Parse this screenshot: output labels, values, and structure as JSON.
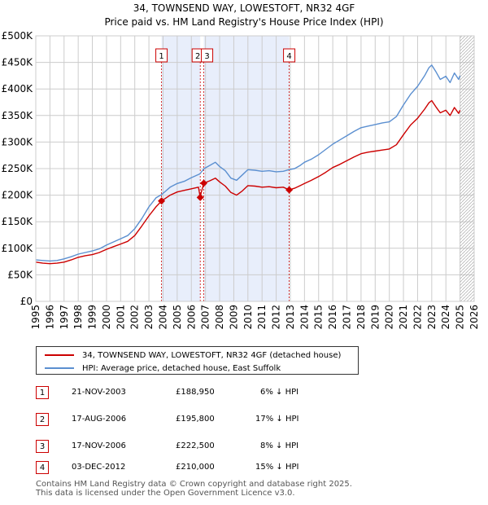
{
  "title_line1": "34, TOWNSEND WAY, LOWESTOFT, NR32 4GF",
  "title_line2": "Price paid vs. HM Land Registry's House Price Index (HPI)",
  "colors": {
    "property": "#cc0000",
    "hpi": "#5b8fd0",
    "shade": "#e8eefb",
    "grid": "#cccccc",
    "marker_line": "#cc0000"
  },
  "chart_data": {
    "type": "line",
    "title": "Price paid vs. HM Land Registry's House Price Index (HPI)",
    "xlabel": "",
    "ylabel": "",
    "xlim": [
      1995,
      2026
    ],
    "ylim": [
      0,
      500000
    ],
    "y_ticks": [
      {
        "value": 0,
        "label": "£0"
      },
      {
        "value": 50000,
        "label": "£50K"
      },
      {
        "value": 100000,
        "label": "£100K"
      },
      {
        "value": 150000,
        "label": "£150K"
      },
      {
        "value": 200000,
        "label": "£200K"
      },
      {
        "value": 250000,
        "label": "£250K"
      },
      {
        "value": 300000,
        "label": "£300K"
      },
      {
        "value": 350000,
        "label": "£350K"
      },
      {
        "value": 400000,
        "label": "£400K"
      },
      {
        "value": 450000,
        "label": "£450K"
      },
      {
        "value": 500000,
        "label": "£500K"
      }
    ],
    "x_ticks": [
      "1995",
      "1996",
      "1997",
      "1998",
      "1999",
      "2000",
      "2001",
      "2002",
      "2003",
      "2004",
      "2005",
      "2006",
      "2007",
      "2008",
      "2009",
      "2010",
      "2011",
      "2012",
      "2013",
      "2014",
      "2015",
      "2016",
      "2017",
      "2018",
      "2019",
      "2020",
      "2021",
      "2022",
      "2023",
      "2024",
      "2025",
      "2026"
    ],
    "shaded_ranges": [
      [
        2003.89,
        2006.63
      ],
      [
        2006.88,
        2012.92
      ]
    ],
    "future_hatch_from": 2025.0,
    "series": [
      {
        "name": "HPI: Average price, detached house, East Suffolk",
        "color": "#5b8fd0",
        "x": [
          1995.0,
          1995.5,
          1996.0,
          1996.5,
          1997.0,
          1997.5,
          1998.0,
          1998.5,
          1999.0,
          1999.5,
          2000.0,
          2000.5,
          2001.0,
          2001.5,
          2002.0,
          2002.5,
          2003.0,
          2003.5,
          2003.9,
          2004.5,
          2005.0,
          2005.5,
          2006.0,
          2006.6,
          2006.9,
          2007.3,
          2007.7,
          2008.0,
          2008.4,
          2008.8,
          2009.2,
          2009.6,
          2010.0,
          2010.5,
          2011.0,
          2011.5,
          2012.0,
          2012.5,
          2012.9,
          2013.3,
          2013.7,
          2014.0,
          2014.5,
          2015.0,
          2015.5,
          2016.0,
          2016.5,
          2017.0,
          2017.5,
          2018.0,
          2018.5,
          2019.0,
          2019.5,
          2020.0,
          2020.5,
          2021.0,
          2021.5,
          2022.0,
          2022.5,
          2022.8,
          2023.0,
          2023.3,
          2023.6,
          2024.0,
          2024.3,
          2024.6,
          2024.9,
          2025.0
        ],
        "values": [
          78000,
          77000,
          76000,
          77000,
          80000,
          84000,
          89000,
          92000,
          95000,
          99000,
          106000,
          112000,
          118000,
          124000,
          137000,
          156000,
          178000,
          195000,
          201000,
          215000,
          222000,
          226000,
          233000,
          240000,
          250000,
          256000,
          262000,
          254000,
          246000,
          232000,
          228000,
          238000,
          248000,
          247000,
          245000,
          246000,
          244000,
          245000,
          248000,
          250000,
          256000,
          262000,
          268000,
          276000,
          286000,
          296000,
          304000,
          312000,
          320000,
          327000,
          330000,
          333000,
          336000,
          338000,
          348000,
          370000,
          390000,
          405000,
          425000,
          440000,
          445000,
          432000,
          418000,
          424000,
          412000,
          430000,
          418000,
          425000
        ]
      },
      {
        "name": "34, TOWNSEND WAY, LOWESTOFT, NR32 4GF (detached house)",
        "color": "#cc0000",
        "x": [
          1995.0,
          1995.5,
          1996.0,
          1996.5,
          1997.0,
          1997.5,
          1998.0,
          1998.5,
          1999.0,
          1999.5,
          2000.0,
          2000.5,
          2001.0,
          2001.5,
          2002.0,
          2002.5,
          2003.0,
          2003.5,
          2003.89,
          2004.5,
          2005.0,
          2005.5,
          2006.0,
          2006.5,
          2006.63,
          2006.7,
          2006.88,
          2007.3,
          2007.7,
          2008.0,
          2008.4,
          2008.8,
          2009.2,
          2009.6,
          2010.0,
          2010.5,
          2011.0,
          2011.5,
          2012.0,
          2012.5,
          2012.92,
          2013.3,
          2013.7,
          2014.0,
          2014.5,
          2015.0,
          2015.5,
          2016.0,
          2016.5,
          2017.0,
          2017.5,
          2018.0,
          2018.5,
          2019.0,
          2019.5,
          2020.0,
          2020.5,
          2021.0,
          2021.5,
          2022.0,
          2022.5,
          2022.8,
          2023.0,
          2023.3,
          2023.6,
          2024.0,
          2024.3,
          2024.6,
          2024.9,
          2025.0
        ],
        "values": [
          74000,
          72000,
          71000,
          72000,
          74000,
          78000,
          83000,
          86000,
          88000,
          92000,
          98000,
          103000,
          108000,
          113000,
          124000,
          142000,
          161000,
          178000,
          188950,
          200000,
          206000,
          209000,
          212000,
          215000,
          195800,
          205000,
          222500,
          227000,
          232000,
          225000,
          217000,
          205000,
          200000,
          208000,
          218000,
          217000,
          215000,
          216000,
          214000,
          215000,
          210000,
          213000,
          218000,
          222000,
          228000,
          235000,
          243000,
          252000,
          258000,
          265000,
          272000,
          278000,
          281000,
          283000,
          285000,
          287000,
          295000,
          314000,
          332000,
          345000,
          362000,
          374000,
          378000,
          366000,
          355000,
          360000,
          350000,
          365000,
          354000,
          360000
        ]
      }
    ],
    "markers": [
      {
        "label": "1",
        "x": 2003.89,
        "value": 188950
      },
      {
        "label": "2",
        "x": 2006.63,
        "value": 195800
      },
      {
        "label": "3",
        "x": 2006.88,
        "value": 222500
      },
      {
        "label": "4",
        "x": 2012.92,
        "value": 210000
      }
    ]
  },
  "legend": {
    "property_label": "34, TOWNSEND WAY, LOWESTOFT, NR32 4GF (detached house)",
    "hpi_label": "HPI: Average price, detached house, East Suffolk"
  },
  "transactions": [
    {
      "num": "1",
      "date": "21-NOV-2003",
      "price": "£188,950",
      "hpi": "6% ↓ HPI"
    },
    {
      "num": "2",
      "date": "17-AUG-2006",
      "price": "£195,800",
      "hpi": "17% ↓ HPI"
    },
    {
      "num": "3",
      "date": "17-NOV-2006",
      "price": "£222,500",
      "hpi": "8% ↓ HPI"
    },
    {
      "num": "4",
      "date": "03-DEC-2012",
      "price": "£210,000",
      "hpi": "15% ↓ HPI"
    }
  ],
  "footer": {
    "line1": "Contains HM Land Registry data © Crown copyright and database right 2025.",
    "line2": "This data is licensed under the Open Government Licence v3.0."
  }
}
